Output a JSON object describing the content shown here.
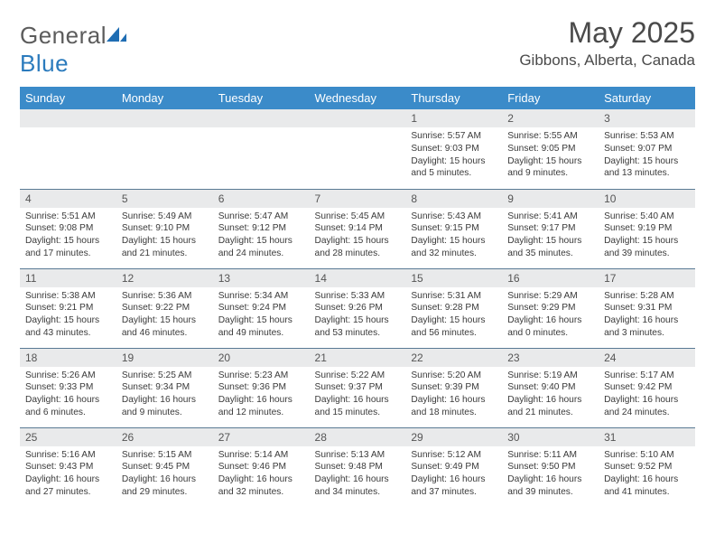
{
  "brand": {
    "part1": "General",
    "part2": "Blue"
  },
  "title": "May 2025",
  "subtitle": "Gibbons, Alberta, Canada",
  "colors": {
    "header_bg": "#3b8bc9",
    "header_text": "#ffffff",
    "daynum_bg": "#e9eaeb",
    "row_border": "#5a7a94"
  },
  "weekdays": [
    "Sunday",
    "Monday",
    "Tuesday",
    "Wednesday",
    "Thursday",
    "Friday",
    "Saturday"
  ],
  "weeks": [
    [
      {
        "n": "",
        "sr": "",
        "ss": "",
        "dl": ""
      },
      {
        "n": "",
        "sr": "",
        "ss": "",
        "dl": ""
      },
      {
        "n": "",
        "sr": "",
        "ss": "",
        "dl": ""
      },
      {
        "n": "",
        "sr": "",
        "ss": "",
        "dl": ""
      },
      {
        "n": "1",
        "sr": "Sunrise: 5:57 AM",
        "ss": "Sunset: 9:03 PM",
        "dl": "Daylight: 15 hours and 5 minutes."
      },
      {
        "n": "2",
        "sr": "Sunrise: 5:55 AM",
        "ss": "Sunset: 9:05 PM",
        "dl": "Daylight: 15 hours and 9 minutes."
      },
      {
        "n": "3",
        "sr": "Sunrise: 5:53 AM",
        "ss": "Sunset: 9:07 PM",
        "dl": "Daylight: 15 hours and 13 minutes."
      }
    ],
    [
      {
        "n": "4",
        "sr": "Sunrise: 5:51 AM",
        "ss": "Sunset: 9:08 PM",
        "dl": "Daylight: 15 hours and 17 minutes."
      },
      {
        "n": "5",
        "sr": "Sunrise: 5:49 AM",
        "ss": "Sunset: 9:10 PM",
        "dl": "Daylight: 15 hours and 21 minutes."
      },
      {
        "n": "6",
        "sr": "Sunrise: 5:47 AM",
        "ss": "Sunset: 9:12 PM",
        "dl": "Daylight: 15 hours and 24 minutes."
      },
      {
        "n": "7",
        "sr": "Sunrise: 5:45 AM",
        "ss": "Sunset: 9:14 PM",
        "dl": "Daylight: 15 hours and 28 minutes."
      },
      {
        "n": "8",
        "sr": "Sunrise: 5:43 AM",
        "ss": "Sunset: 9:15 PM",
        "dl": "Daylight: 15 hours and 32 minutes."
      },
      {
        "n": "9",
        "sr": "Sunrise: 5:41 AM",
        "ss": "Sunset: 9:17 PM",
        "dl": "Daylight: 15 hours and 35 minutes."
      },
      {
        "n": "10",
        "sr": "Sunrise: 5:40 AM",
        "ss": "Sunset: 9:19 PM",
        "dl": "Daylight: 15 hours and 39 minutes."
      }
    ],
    [
      {
        "n": "11",
        "sr": "Sunrise: 5:38 AM",
        "ss": "Sunset: 9:21 PM",
        "dl": "Daylight: 15 hours and 43 minutes."
      },
      {
        "n": "12",
        "sr": "Sunrise: 5:36 AM",
        "ss": "Sunset: 9:22 PM",
        "dl": "Daylight: 15 hours and 46 minutes."
      },
      {
        "n": "13",
        "sr": "Sunrise: 5:34 AM",
        "ss": "Sunset: 9:24 PM",
        "dl": "Daylight: 15 hours and 49 minutes."
      },
      {
        "n": "14",
        "sr": "Sunrise: 5:33 AM",
        "ss": "Sunset: 9:26 PM",
        "dl": "Daylight: 15 hours and 53 minutes."
      },
      {
        "n": "15",
        "sr": "Sunrise: 5:31 AM",
        "ss": "Sunset: 9:28 PM",
        "dl": "Daylight: 15 hours and 56 minutes."
      },
      {
        "n": "16",
        "sr": "Sunrise: 5:29 AM",
        "ss": "Sunset: 9:29 PM",
        "dl": "Daylight: 16 hours and 0 minutes."
      },
      {
        "n": "17",
        "sr": "Sunrise: 5:28 AM",
        "ss": "Sunset: 9:31 PM",
        "dl": "Daylight: 16 hours and 3 minutes."
      }
    ],
    [
      {
        "n": "18",
        "sr": "Sunrise: 5:26 AM",
        "ss": "Sunset: 9:33 PM",
        "dl": "Daylight: 16 hours and 6 minutes."
      },
      {
        "n": "19",
        "sr": "Sunrise: 5:25 AM",
        "ss": "Sunset: 9:34 PM",
        "dl": "Daylight: 16 hours and 9 minutes."
      },
      {
        "n": "20",
        "sr": "Sunrise: 5:23 AM",
        "ss": "Sunset: 9:36 PM",
        "dl": "Daylight: 16 hours and 12 minutes."
      },
      {
        "n": "21",
        "sr": "Sunrise: 5:22 AM",
        "ss": "Sunset: 9:37 PM",
        "dl": "Daylight: 16 hours and 15 minutes."
      },
      {
        "n": "22",
        "sr": "Sunrise: 5:20 AM",
        "ss": "Sunset: 9:39 PM",
        "dl": "Daylight: 16 hours and 18 minutes."
      },
      {
        "n": "23",
        "sr": "Sunrise: 5:19 AM",
        "ss": "Sunset: 9:40 PM",
        "dl": "Daylight: 16 hours and 21 minutes."
      },
      {
        "n": "24",
        "sr": "Sunrise: 5:17 AM",
        "ss": "Sunset: 9:42 PM",
        "dl": "Daylight: 16 hours and 24 minutes."
      }
    ],
    [
      {
        "n": "25",
        "sr": "Sunrise: 5:16 AM",
        "ss": "Sunset: 9:43 PM",
        "dl": "Daylight: 16 hours and 27 minutes."
      },
      {
        "n": "26",
        "sr": "Sunrise: 5:15 AM",
        "ss": "Sunset: 9:45 PM",
        "dl": "Daylight: 16 hours and 29 minutes."
      },
      {
        "n": "27",
        "sr": "Sunrise: 5:14 AM",
        "ss": "Sunset: 9:46 PM",
        "dl": "Daylight: 16 hours and 32 minutes."
      },
      {
        "n": "28",
        "sr": "Sunrise: 5:13 AM",
        "ss": "Sunset: 9:48 PM",
        "dl": "Daylight: 16 hours and 34 minutes."
      },
      {
        "n": "29",
        "sr": "Sunrise: 5:12 AM",
        "ss": "Sunset: 9:49 PM",
        "dl": "Daylight: 16 hours and 37 minutes."
      },
      {
        "n": "30",
        "sr": "Sunrise: 5:11 AM",
        "ss": "Sunset: 9:50 PM",
        "dl": "Daylight: 16 hours and 39 minutes."
      },
      {
        "n": "31",
        "sr": "Sunrise: 5:10 AM",
        "ss": "Sunset: 9:52 PM",
        "dl": "Daylight: 16 hours and 41 minutes."
      }
    ]
  ]
}
